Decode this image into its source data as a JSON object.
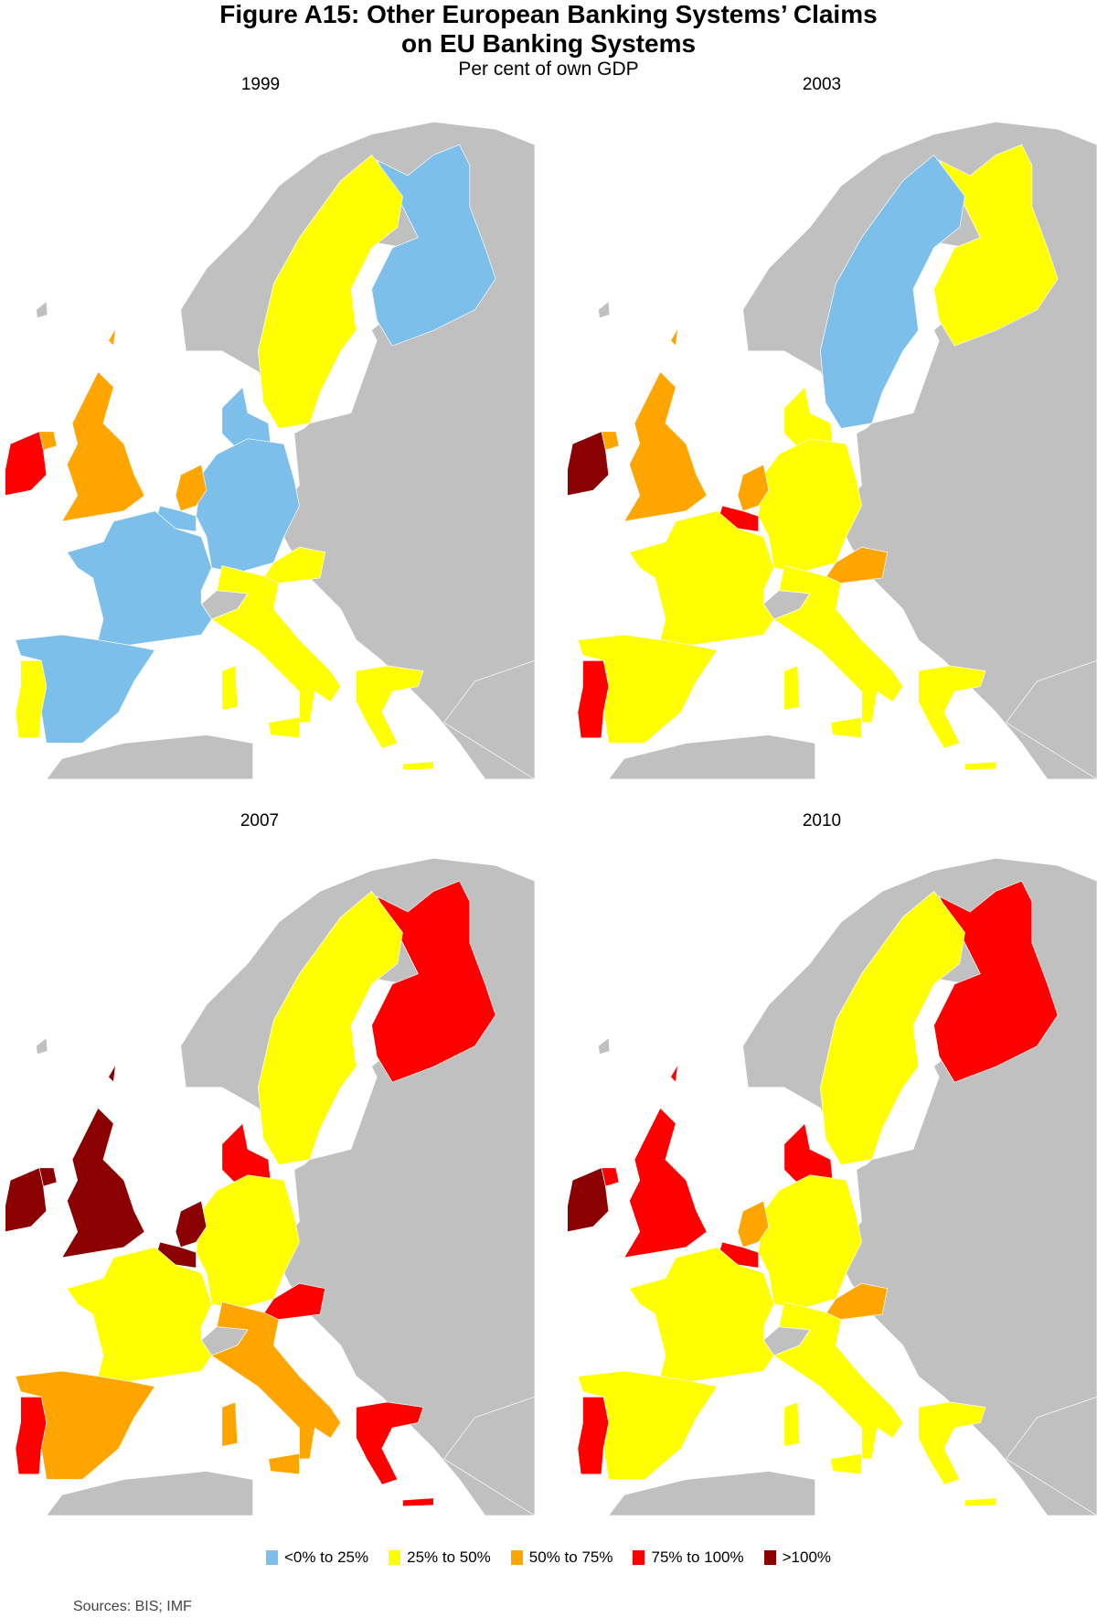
{
  "header": {
    "title_line1": "Figure A15: Other European Banking Systems’ Claims",
    "title_line2": "on EU Banking Systems",
    "subtitle": "Per cent of own GDP"
  },
  "chart_data": {
    "type": "choropleth",
    "categories": [
      {
        "key": "c1",
        "label": "<0% to 25%",
        "color": "#7dbfeb"
      },
      {
        "key": "c2",
        "label": "25% to 50%",
        "color": "#ffff00"
      },
      {
        "key": "c3",
        "label": "50% to 75%",
        "color": "#ffa500"
      },
      {
        "key": "c4",
        "label": "75% to 100%",
        "color": "#ff0000"
      },
      {
        "key": "c5",
        "label": ">100%",
        "color": "#8b0000"
      }
    ],
    "no_data_color": "#c0c0c0",
    "panels": [
      {
        "year": "1999",
        "values": {
          "Ireland": "c4",
          "United Kingdom": "c3",
          "Netherlands": "c3",
          "Belgium": "c1",
          "France": "c1",
          "Germany": "c1",
          "Denmark": "c1",
          "Sweden": "c2",
          "Finland": "c1",
          "Austria": "c2",
          "Italy": "c2",
          "Spain": "c1",
          "Portugal": "c2",
          "Greece": "c2"
        }
      },
      {
        "year": "2003",
        "values": {
          "Ireland": "c5",
          "United Kingdom": "c3",
          "Netherlands": "c3",
          "Belgium": "c4",
          "France": "c2",
          "Germany": "c2",
          "Denmark": "c2",
          "Sweden": "c1",
          "Finland": "c2",
          "Austria": "c3",
          "Italy": "c2",
          "Spain": "c2",
          "Portugal": "c4",
          "Greece": "c2"
        }
      },
      {
        "year": "2007",
        "values": {
          "Ireland": "c5",
          "United Kingdom": "c5",
          "Netherlands": "c5",
          "Belgium": "c5",
          "France": "c2",
          "Germany": "c2",
          "Denmark": "c4",
          "Sweden": "c2",
          "Finland": "c4",
          "Austria": "c4",
          "Italy": "c3",
          "Spain": "c3",
          "Portugal": "c4",
          "Greece": "c4"
        }
      },
      {
        "year": "2010",
        "values": {
          "Ireland": "c5",
          "United Kingdom": "c4",
          "Netherlands": "c3",
          "Belgium": "c4",
          "France": "c2",
          "Germany": "c2",
          "Denmark": "c4",
          "Sweden": "c2",
          "Finland": "c4",
          "Austria": "c3",
          "Italy": "c2",
          "Spain": "c2",
          "Portugal": "c4",
          "Greece": "c2"
        }
      }
    ]
  },
  "footer": {
    "sources": "Sources:  BIS; IMF"
  }
}
